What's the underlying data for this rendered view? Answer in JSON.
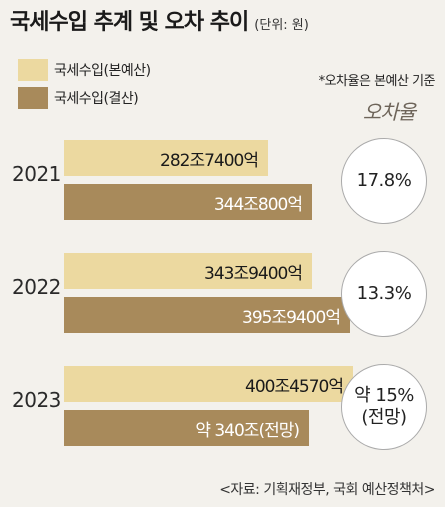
{
  "title": "국세수입 추계 및 오차 추이",
  "unit": "(단위: 원)",
  "note": "*오차율은 본예산 기준",
  "rate_header": "오차율",
  "source": "<자료: 기획재정부, 국회 예산정책처>",
  "colors": {
    "budget": "#ecd9a0",
    "settle": "#a88a5b",
    "background": "#f3f1ec"
  },
  "chart_data": {
    "type": "bar",
    "orientation": "horizontal",
    "categories": [
      "2021",
      "2022",
      "2023"
    ],
    "series": [
      {
        "name": "국세수입(본예산)",
        "values": [
          282.74,
          343.94,
          400.457
        ],
        "labels": [
          "282조7400억",
          "343조9400억",
          "400조4570억"
        ]
      },
      {
        "name": "국세수입(결산)",
        "values": [
          344.08,
          395.94,
          340
        ],
        "labels": [
          "344조800억",
          "395조9400억",
          "약 340조(전망)"
        ]
      }
    ],
    "error_rates": [
      {
        "year": "2021",
        "lines": [
          "17.8%"
        ]
      },
      {
        "year": "2022",
        "lines": [
          "13.3%"
        ]
      },
      {
        "year": "2023",
        "lines": [
          "약 15%",
          "(전망)"
        ]
      }
    ],
    "unit": "조 원",
    "xlim": [
      0,
      410
    ]
  }
}
